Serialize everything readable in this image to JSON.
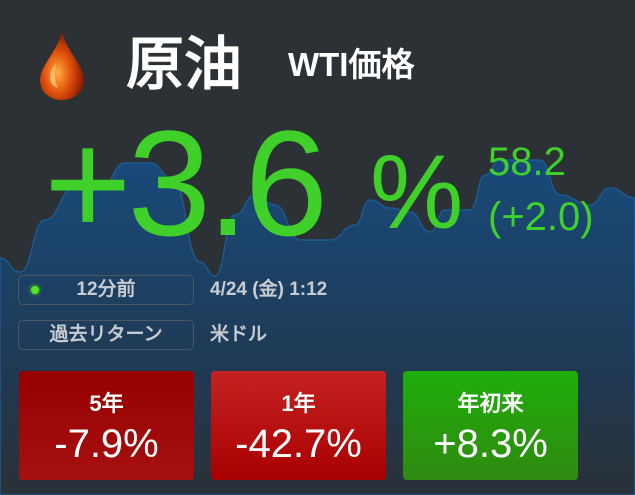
{
  "header": {
    "title": "原油",
    "subtitle": "WTI価格",
    "icon": "oil-drop-icon"
  },
  "quote": {
    "change_percent": "+3.6",
    "percent_sign": "%",
    "price": "58.2",
    "change": "(+2.0)",
    "color": "#3fd12a"
  },
  "status": {
    "updated": "12分前",
    "datetime": "4/24 (金) 1:12",
    "returns_label": "過去リターン",
    "currency": "米ドル",
    "live_color": "#4ee620"
  },
  "returns": [
    {
      "label": "5年",
      "value": "-7.9%",
      "color": "#9e0808"
    },
    {
      "label": "1年",
      "value": "-42.7%",
      "color": "#b81414"
    },
    {
      "label": "年初来",
      "value": "+8.3%",
      "color": "#26a00c"
    }
  ]
}
